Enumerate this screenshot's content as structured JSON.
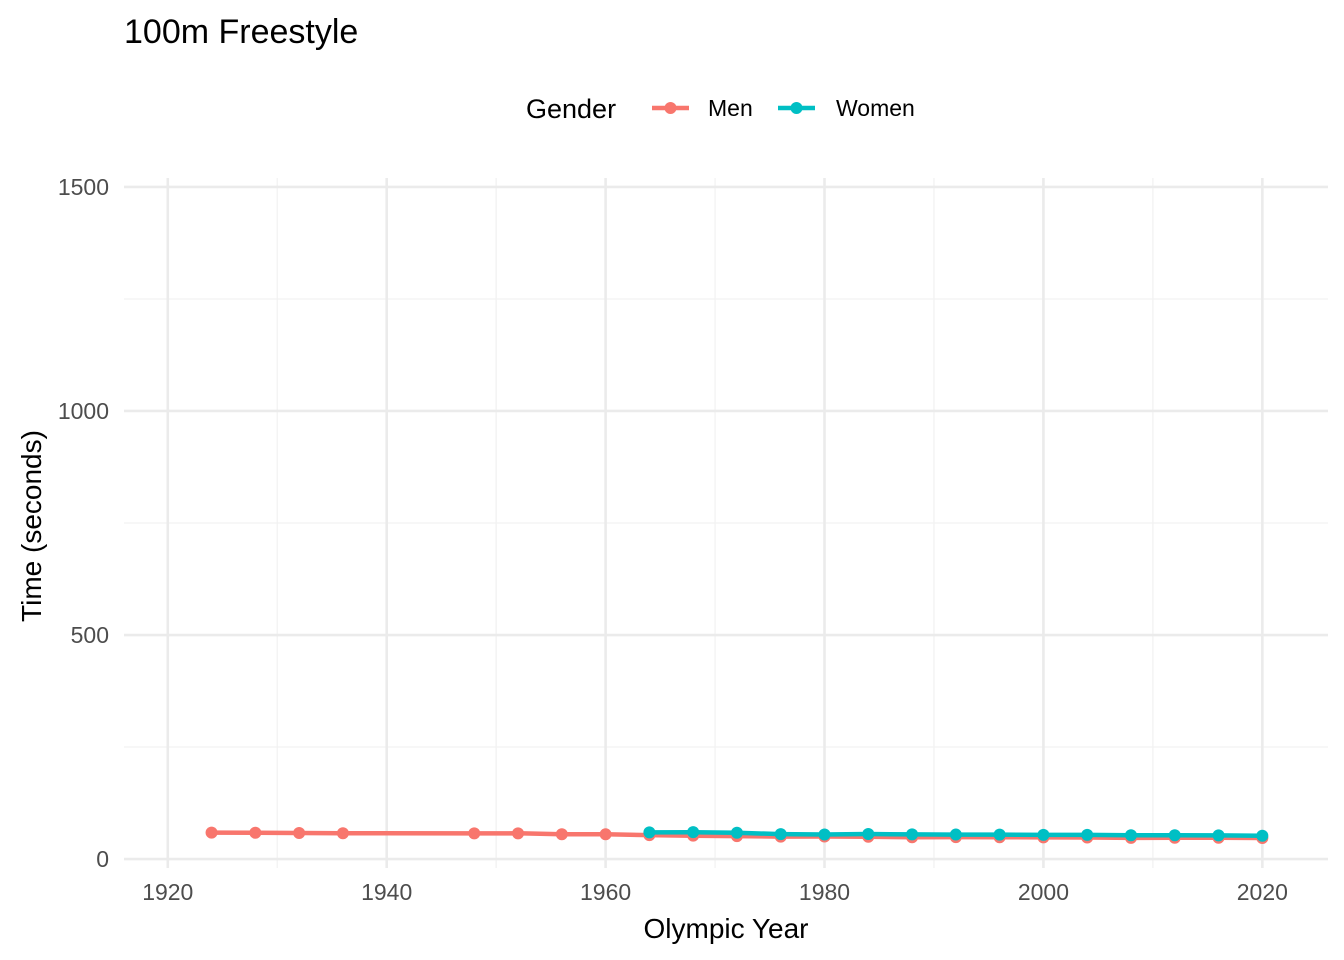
{
  "chart_data": {
    "type": "line",
    "title": "100m Freestyle",
    "xlabel": "Olympic Year",
    "ylabel": "Time (seconds)",
    "xlim": [
      1916,
      2026
    ],
    "ylim": [
      -20,
      1520
    ],
    "x_ticks": [
      "1920",
      "1940",
      "1960",
      "1980",
      "2000",
      "2020"
    ],
    "y_ticks": [
      "0",
      "500",
      "1000",
      "1500"
    ],
    "legend": {
      "title": "Gender",
      "placement": "top"
    },
    "grid": true,
    "series": [
      {
        "name": "Men",
        "color": "#F8766D",
        "points": [
          [
            1924,
            59.0
          ],
          [
            1928,
            58.6
          ],
          [
            1932,
            58.2
          ],
          [
            1936,
            57.6
          ],
          [
            1948,
            57.3
          ],
          [
            1952,
            57.4
          ],
          [
            1956,
            55.4
          ],
          [
            1960,
            55.2
          ],
          [
            1964,
            53.4
          ],
          [
            1968,
            52.2
          ],
          [
            1972,
            51.22
          ],
          [
            1976,
            49.99
          ],
          [
            1980,
            50.4
          ],
          [
            1984,
            49.8
          ],
          [
            1988,
            48.63
          ],
          [
            1992,
            49.02
          ],
          [
            1996,
            48.74
          ],
          [
            2000,
            48.3
          ],
          [
            2004,
            48.17
          ],
          [
            2008,
            47.21
          ],
          [
            2012,
            47.52
          ],
          [
            2016,
            47.58
          ],
          [
            2020,
            47.02
          ]
        ]
      },
      {
        "name": "Women",
        "color": "#00BFC4",
        "points": [
          [
            1964,
            59.5
          ],
          [
            1968,
            60.0
          ],
          [
            1972,
            58.59
          ],
          [
            1976,
            55.65
          ],
          [
            1980,
            54.79
          ],
          [
            1984,
            55.92
          ],
          [
            1988,
            54.93
          ],
          [
            1992,
            54.64
          ],
          [
            1996,
            54.5
          ],
          [
            2000,
            53.83
          ],
          [
            2004,
            53.84
          ],
          [
            2008,
            53.12
          ],
          [
            2012,
            53.0
          ],
          [
            2016,
            52.7
          ],
          [
            2020,
            51.96
          ]
        ]
      }
    ]
  }
}
